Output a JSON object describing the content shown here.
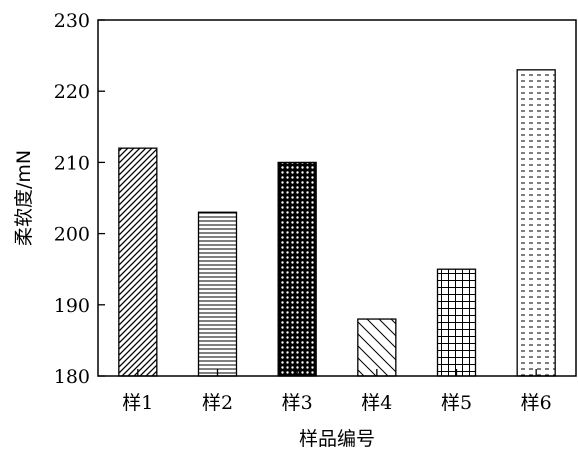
{
  "chart_data": {
    "type": "bar",
    "title": "",
    "xlabel": "样品编号",
    "ylabel": "柔软度/mN",
    "categories": [
      "样1",
      "样2",
      "样3",
      "样4",
      "样5",
      "样6"
    ],
    "values": [
      212,
      203,
      210,
      188,
      195,
      223
    ],
    "ylim": [
      180,
      230
    ],
    "yticks": [
      180,
      190,
      200,
      210,
      220,
      230
    ],
    "grid": false,
    "legend": "none",
    "bar_patterns": [
      "diagonal-lines",
      "horizontal-lines",
      "dense-crosshatch",
      "backslash-lines",
      "grid",
      "dashes"
    ],
    "colors": {
      "bar_edge": "#000000",
      "background": "#ffffff"
    }
  }
}
